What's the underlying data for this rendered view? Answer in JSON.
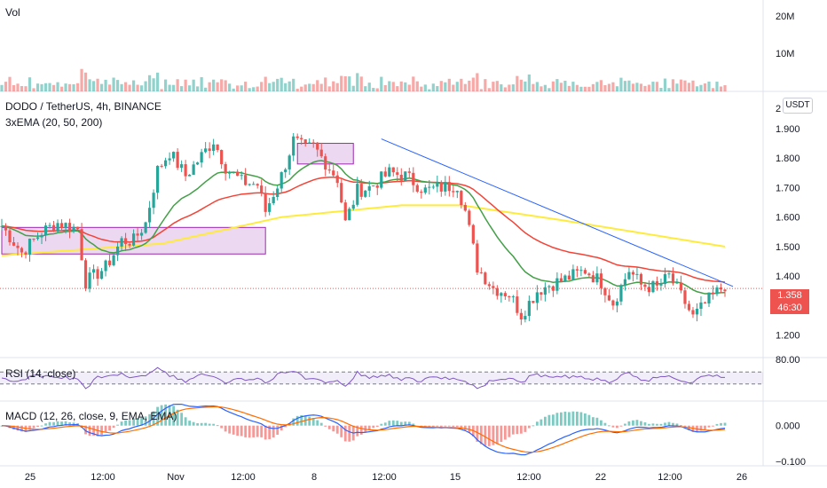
{
  "panes": {
    "volume": {
      "label": "Vol",
      "axis_ticks": [
        "20M",
        "10M"
      ]
    },
    "price": {
      "symbol_line": "DODO / TetherUS, 4h, BINANCE",
      "indicator": "3xEMA (20, 50, 200)",
      "unit": "USDT",
      "axis_ticks": [
        "2",
        "1.900",
        "1.800",
        "1.700",
        "1.600",
        "1.500",
        "1.400",
        "1.200"
      ],
      "last_price": "1.358",
      "countdown": "46:30"
    },
    "rsi": {
      "label": "RSI (14, close)",
      "axis_ticks": [
        "80.00"
      ]
    },
    "macd": {
      "label": "MACD (12, 26, close, 9, EMA, EMA)",
      "axis_ticks": [
        "0.000",
        "−0.100"
      ]
    }
  },
  "time_axis": [
    "25",
    "12:00",
    "Nov",
    "12:00",
    "8",
    "12:00",
    "15",
    "12:00",
    "22",
    "12:00",
    "26"
  ],
  "colors": {
    "up": "#26a69a",
    "down": "#ef5350",
    "ema20": "#43a047",
    "ema50": "#f44336",
    "ema200": "#ffeb3b",
    "trendline": "#2962ff",
    "box": "#9c27b0",
    "rsi": "#7e57c2",
    "macd": "#2962ff",
    "signal": "#ff6d00"
  },
  "chart_data": {
    "type": "candlestick",
    "price_range": [
      1.13,
      2.02
    ],
    "ohlc_anchors": [
      [
        0,
        1.57
      ],
      [
        5,
        1.48
      ],
      [
        10,
        1.55
      ],
      [
        14,
        1.58
      ],
      [
        19,
        1.56
      ],
      [
        21,
        1.38
      ],
      [
        26,
        1.43
      ],
      [
        30,
        1.52
      ],
      [
        33,
        1.52
      ],
      [
        36,
        1.58
      ],
      [
        39,
        1.76
      ],
      [
        42,
        1.82
      ],
      [
        46,
        1.74
      ],
      [
        49,
        1.79
      ],
      [
        53,
        1.86
      ],
      [
        56,
        1.77
      ],
      [
        60,
        1.72
      ],
      [
        64,
        1.71
      ],
      [
        66,
        1.62
      ],
      [
        70,
        1.74
      ],
      [
        73,
        1.86
      ],
      [
        76,
        1.83
      ],
      [
        78,
        1.84
      ],
      [
        84,
        1.73
      ],
      [
        86,
        1.58
      ],
      [
        89,
        1.69
      ],
      [
        92,
        1.7
      ],
      [
        97,
        1.75
      ],
      [
        101,
        1.74
      ],
      [
        106,
        1.69
      ],
      [
        110,
        1.7
      ],
      [
        114,
        1.71
      ],
      [
        116,
        1.62
      ],
      [
        119,
        1.43
      ],
      [
        123,
        1.36
      ],
      [
        127,
        1.34
      ],
      [
        130,
        1.27
      ],
      [
        134,
        1.35
      ],
      [
        137,
        1.37
      ],
      [
        141,
        1.39
      ],
      [
        146,
        1.42
      ],
      [
        150,
        1.38
      ],
      [
        153,
        1.31
      ],
      [
        157,
        1.42
      ],
      [
        160,
        1.37
      ],
      [
        164,
        1.36
      ],
      [
        167,
        1.4
      ],
      [
        171,
        1.31
      ],
      [
        173,
        1.26
      ],
      [
        177,
        1.32
      ],
      [
        181,
        1.37
      ]
    ],
    "ema200_anchors": [
      [
        0,
        1.47
      ],
      [
        40,
        1.51
      ],
      [
        70,
        1.6
      ],
      [
        100,
        1.64
      ],
      [
        115,
        1.64
      ],
      [
        140,
        1.59
      ],
      [
        181,
        1.5
      ]
    ],
    "trendline": [
      [
        95,
        1.865
      ],
      [
        183,
        1.365
      ]
    ],
    "boxes": [
      [
        0,
        66,
        1.475,
        1.565
      ],
      [
        74,
        88,
        1.78,
        1.85
      ]
    ],
    "rsi_range": [
      0,
      100
    ],
    "macd_range": [
      -0.13,
      0.07
    ]
  }
}
